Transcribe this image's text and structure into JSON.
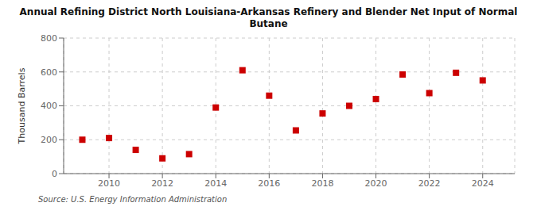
{
  "chart_data": {
    "type": "scatter",
    "title": "Annual Refining District North Louisiana-Arkansas Refinery and Blender Net Input of Normal\nButane",
    "ylabel": "Thousand Barrels",
    "source": "Source: U.S. Energy Information Administration",
    "x": [
      2009,
      2010,
      2011,
      2012,
      2013,
      2014,
      2015,
      2016,
      2017,
      2018,
      2019,
      2020,
      2021,
      2022,
      2023,
      2024
    ],
    "values": [
      200,
      210,
      140,
      90,
      115,
      390,
      610,
      460,
      255,
      355,
      400,
      440,
      585,
      475,
      595,
      550
    ],
    "color": "#cc0000",
    "marker": "square",
    "xlim": [
      2008.3,
      2025.2
    ],
    "xticks": [
      2010,
      2012,
      2014,
      2016,
      2018,
      2020,
      2022,
      2024
    ],
    "ylim": [
      0,
      800
    ],
    "yticks": [
      0,
      200,
      400,
      600,
      800
    ],
    "grid": true
  }
}
